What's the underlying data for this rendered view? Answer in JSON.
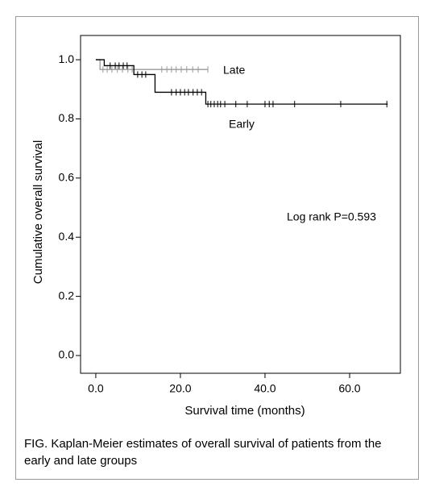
{
  "chart_data": {
    "type": "step",
    "xlabel": "Survival time (months)",
    "ylabel": "Cumulative overall survival",
    "annotation": "Log rank P=0.593",
    "caption": "FIG.  Kaplan-Meier estimates of overall survival of patients from the early and late groups",
    "xlim": [
      -3.6,
      72
    ],
    "ylim": [
      -0.06,
      1.082
    ],
    "xticks": [
      {
        "value": 0,
        "label": "0.0"
      },
      {
        "value": 20,
        "label": "20.0"
      },
      {
        "value": 40,
        "label": "40.0"
      },
      {
        "value": 60,
        "label": "60.0"
      }
    ],
    "yticks": [
      {
        "value": 0,
        "label": "0.0"
      },
      0.2,
      0.4,
      0.6,
      0.8,
      {
        "value": 1,
        "label": "1.0"
      }
    ],
    "series": [
      {
        "name": "Late",
        "color": "#999999",
        "x": [
          0,
          1,
          1,
          26.5
        ],
        "values": [
          1,
          1,
          0.967,
          0.967
        ],
        "censored": {
          "x": [
            1.7,
            2.7,
            3.8,
            5.1,
            6.3,
            7.6,
            8.6,
            15.6,
            16.8,
            17.9,
            19,
            20.2,
            21.5,
            22.9,
            24.2,
            26.5
          ],
          "values": [
            0.967,
            0.967,
            0.967,
            0.967,
            0.967,
            0.967,
            0.967,
            0.967,
            0.967,
            0.967,
            0.967,
            0.967,
            0.967,
            0.967,
            0.967,
            0.967
          ]
        }
      },
      {
        "name": "Early",
        "color": "#000000",
        "x": [
          0,
          2,
          2,
          9,
          9,
          14,
          14,
          26,
          26,
          69
        ],
        "values": [
          1,
          1,
          0.98,
          0.98,
          0.95,
          0.95,
          0.89,
          0.89,
          0.85,
          0.85
        ],
        "censored": {
          "x": [
            3.4,
            4.6,
            5.5,
            6.5,
            7.4,
            9.9,
            10.9,
            11.8,
            17.9,
            19,
            20,
            21,
            21.9,
            23,
            24,
            25,
            26.5,
            27.2,
            28,
            28.8,
            29.5,
            30.5,
            33.1,
            35.8,
            40,
            41,
            41.9,
            47,
            57.9,
            68.8
          ],
          "values": [
            0.98,
            0.98,
            0.98,
            0.98,
            0.98,
            0.95,
            0.95,
            0.95,
            0.89,
            0.89,
            0.89,
            0.89,
            0.89,
            0.89,
            0.89,
            0.89,
            0.85,
            0.85,
            0.85,
            0.85,
            0.85,
            0.85,
            0.85,
            0.85,
            0.85,
            0.85,
            0.85,
            0.85,
            0.85,
            0.85
          ]
        }
      }
    ]
  }
}
